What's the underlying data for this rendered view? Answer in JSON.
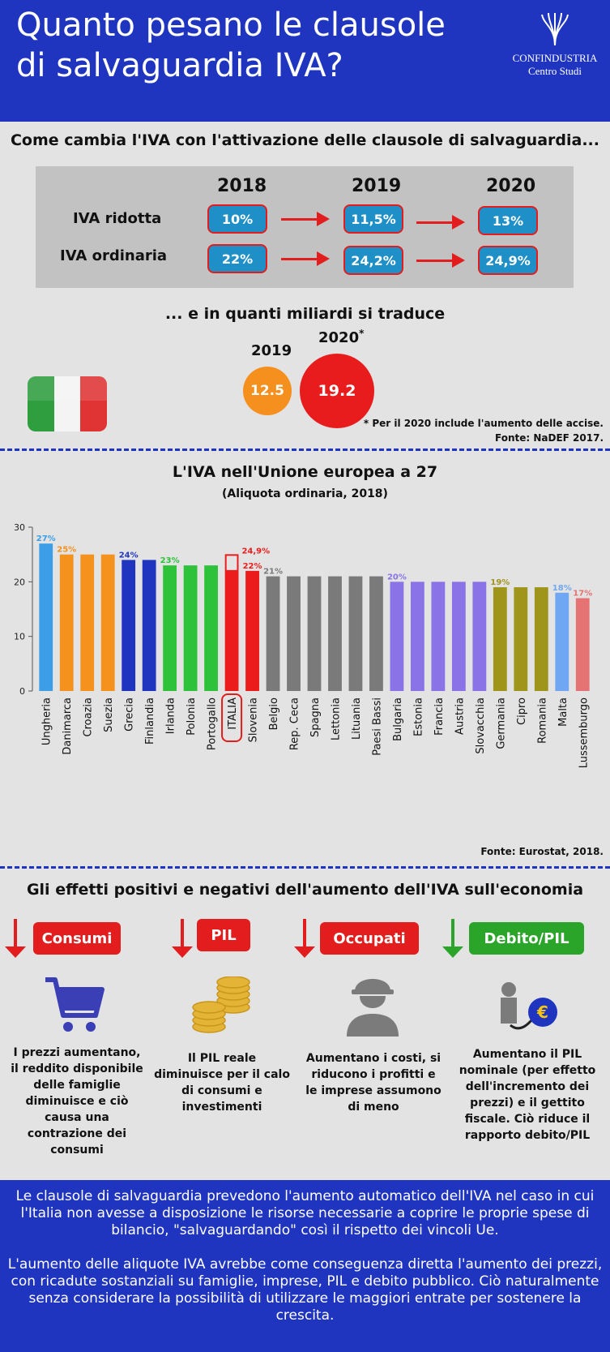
{
  "header": {
    "title_line1": "Quanto pesano le clausole",
    "title_line2": "di salvaguardia IVA?",
    "logo_line1": "CONFINDUSTRIA",
    "logo_line2": "Centro Studi"
  },
  "iva_section": {
    "title": "Come cambia l'IVA con l'attivazione delle clausole di salvaguardia...",
    "years": [
      "2018",
      "2019",
      "2020"
    ],
    "rows": [
      {
        "label": "IVA ridotta",
        "values": [
          "10%",
          "11,5%",
          "13%"
        ]
      },
      {
        "label": "IVA ordinaria",
        "values": [
          "22%",
          "24,2%",
          "24,9%"
        ]
      }
    ]
  },
  "miliardi": {
    "title": "... e in quanti miliardi si traduce",
    "year1": "2019",
    "year2": "2020",
    "asterisk": "*",
    "value1": "12.5",
    "value2": "19.2",
    "note1": "* Per il 2020 include l'aumento delle accise.",
    "note2": "Fonte: NaDEF 2017."
  },
  "chart_title": "L'IVA nell'Unione europea a 27",
  "chart_subtitle": "(Aliquota ordinaria, 2018)",
  "chart_source": "Fonte: Eurostat, 2018.",
  "chart_data": {
    "type": "bar",
    "title": "L'IVA nell'Unione europea a 27",
    "subtitle": "(Aliquota ordinaria, 2018)",
    "categories": [
      "Ungheria",
      "Danimarca",
      "Croazia",
      "Suezia",
      "Grecia",
      "Finlandia",
      "Irlanda",
      "Polonia",
      "Portogallo",
      "ITALIA",
      "Slovenia",
      "Belgio",
      "Rep. Ceca",
      "Spagna",
      "Lettonia",
      "Lituania",
      "Paesi Bassi",
      "Bulgaria",
      "Estonia",
      "Francia",
      "Austria",
      "Slovacchia",
      "Germania",
      "Cipro",
      "Romania",
      "Malta",
      "Lussemburgo"
    ],
    "values": [
      27,
      25,
      25,
      25,
      24,
      24,
      23,
      23,
      23,
      22,
      22,
      21,
      21,
      21,
      21,
      21,
      21,
      20,
      20,
      20,
      20,
      20,
      19,
      19,
      19,
      18,
      17
    ],
    "colors": [
      "#3b9ee6",
      "#f5921e",
      "#f5921e",
      "#f5921e",
      "#1f35c0",
      "#1f35c0",
      "#2ec23a",
      "#2ec23a",
      "#2ec23a",
      "#ec1c1c",
      "#ec1c1c",
      "#7a7a7a",
      "#7a7a7a",
      "#7a7a7a",
      "#7a7a7a",
      "#7a7a7a",
      "#7a7a7a",
      "#8a73e6",
      "#8a73e6",
      "#8a73e6",
      "#8a73e6",
      "#8a73e6",
      "#9e951a",
      "#9e951a",
      "#9e951a",
      "#6fa7f2",
      "#e57373"
    ],
    "data_labels": [
      {
        "index": 0,
        "text": "27%",
        "color": "#3b9ee6"
      },
      {
        "index": 1,
        "text": "25%",
        "color": "#f5921e"
      },
      {
        "index": 4,
        "text": "24%",
        "color": "#1f35c0"
      },
      {
        "index": 6,
        "text": "23%",
        "color": "#2ec23a"
      },
      {
        "index": 10,
        "text": "22%",
        "color": "#ec1c1c"
      },
      {
        "index": 11,
        "text": "21%",
        "color": "#7a7a7a"
      },
      {
        "index": 17,
        "text": "20%",
        "color": "#8a73e6"
      },
      {
        "index": 22,
        "text": "19%",
        "color": "#9e951a"
      },
      {
        "index": 25,
        "text": "18%",
        "color": "#6fa7f2"
      },
      {
        "index": 26,
        "text": "17%",
        "color": "#e57373"
      }
    ],
    "italia_projection": {
      "value": 24.9,
      "label": "24,9%"
    },
    "highlight": "ITALIA",
    "ylim": [
      0,
      30
    ],
    "yticks": [
      0,
      10,
      20,
      30
    ]
  },
  "effects": {
    "title": "Gli effetti positivi e negativi dell'aumento dell'IVA sull'economia",
    "items": [
      {
        "label": "Consumi",
        "direction": "down",
        "color": "#e31d1d",
        "icon": "shopping-cart-icon",
        "text": "I prezzi aumentano, il reddito disponibile delle famiglie diminuisce e ciò causa una contrazione dei consumi"
      },
      {
        "label": "PIL",
        "direction": "down",
        "color": "#e31d1d",
        "icon": "coins-icon",
        "text": "Il PIL reale diminuisce per il calo di consumi e investimenti"
      },
      {
        "label": "Occupati",
        "direction": "down",
        "color": "#e31d1d",
        "icon": "worker-icon",
        "text": "Aumentano i costi, si riducono i profitti e le imprese assumono di meno"
      },
      {
        "label": "Debito/PIL",
        "direction": "down",
        "color": "#2aa52a",
        "icon": "debt-ball-icon",
        "text": "Aumentano il PIL nominale (per effetto dell'incremento dei prezzi) e il gettito fiscale. Ciò riduce il rapporto debito/PIL"
      }
    ]
  },
  "footer": {
    "p1": "Le clausole di salvaguardia prevedono l'aumento automatico dell'IVA nel caso in cui l'Italia non avesse a disposizione le risorse necessarie a coprire le proprie spese di bilancio, \"salvaguardando\" così il rispetto dei vincoli Ue.",
    "p2": "L'aumento delle aliquote IVA avrebbe come conseguenza diretta l'aumento dei prezzi, con ricadute sostanziali su famiglie, imprese, PIL e debito pubblico. Ciò naturalmente senza considerare la possibilità di utilizzare le maggiori entrate per sostenere la crescita."
  }
}
